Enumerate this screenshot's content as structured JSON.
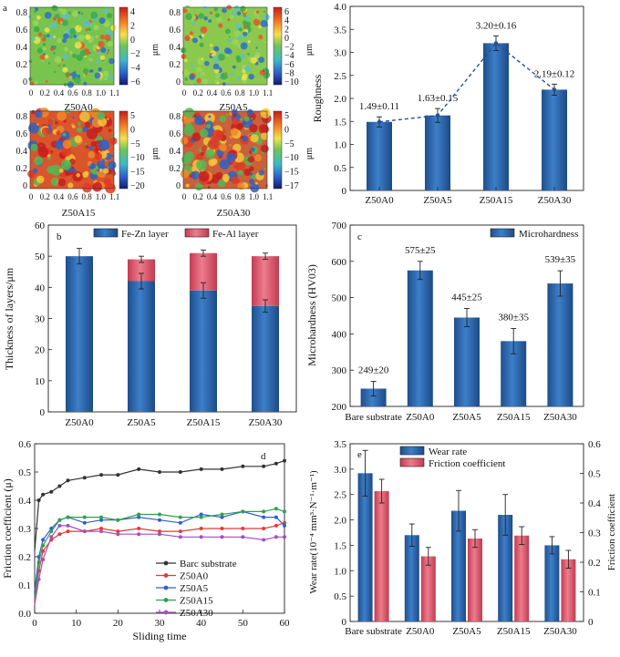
{
  "figure_label": "a",
  "chart_data": [
    {
      "type": "heatmap",
      "panel": "a",
      "tiles": [
        {
          "title": "Z50A0",
          "cbar_ticks": [
            "4",
            "2",
            "0",
            "−2",
            "−4",
            "−6"
          ],
          "cbar_unit": "μm"
        },
        {
          "title": "Z50A5",
          "cbar_ticks": [
            "6",
            "4",
            "2",
            "0",
            "−2",
            "−4",
            "−6",
            "−8",
            "−10"
          ],
          "cbar_unit": "μm"
        },
        {
          "title": "Z50A15",
          "cbar_ticks": [
            "5",
            "0",
            "−5",
            "−10",
            "−15",
            "−20"
          ],
          "cbar_unit": "μm"
        },
        {
          "title": "Z50A30",
          "cbar_ticks": [
            "5",
            "0",
            "−5",
            "−10",
            "−15",
            "−17"
          ],
          "cbar_unit": "μm"
        }
      ],
      "x_ticks": [
        "0",
        "0.2",
        "0.4",
        "0.6",
        "0.8",
        "1.0",
        "1.1"
      ],
      "y_ticks": [
        "0.8",
        "0.6",
        "0.4",
        "0.2",
        "0"
      ]
    },
    {
      "type": "bar",
      "panel": "roughness",
      "categories": [
        "Z50A0",
        "Z50A5",
        "Z50A15",
        "Z50A30"
      ],
      "values": [
        1.49,
        1.63,
        3.2,
        2.19
      ],
      "errors": [
        0.11,
        0.15,
        0.16,
        0.12
      ],
      "labels": [
        "1.49±0.11",
        "1.63±0.15",
        "3.20±0.16",
        "2.19±0.12"
      ],
      "ylabel": "Roughness",
      "ylim": [
        0,
        4.0
      ],
      "yticks": [
        "0",
        "0.5",
        "1.0",
        "1.5",
        "2.0",
        "2.5",
        "3.0",
        "3.5",
        "4.0"
      ],
      "trend_line": true
    },
    {
      "type": "bar",
      "panel": "b",
      "stacked": true,
      "categories": [
        "Z50A0",
        "Z50A5",
        "Z50A15",
        "Z50A30"
      ],
      "series": [
        {
          "name": "Fe-Zn layer",
          "values": [
            50,
            42,
            39,
            34
          ],
          "errors": [
            2.5,
            2.5,
            2.5,
            2
          ]
        },
        {
          "name": "Fe-Al layer",
          "values": [
            0,
            7,
            12,
            16
          ],
          "errors": [
            0,
            1,
            1,
            1
          ]
        }
      ],
      "ylabel": "Thickness of layers/μm",
      "ylim": [
        0,
        60
      ],
      "yticks": [
        "0",
        "10",
        "20",
        "30",
        "40",
        "50",
        "60"
      ],
      "legend": "top"
    },
    {
      "type": "bar",
      "panel": "c",
      "categories": [
        "Bare substrate",
        "Z50A0",
        "Z50A5",
        "Z50A15",
        "Z50A30"
      ],
      "values": [
        249,
        575,
        445,
        380,
        539
      ],
      "errors": [
        20,
        25,
        25,
        35,
        35
      ],
      "labels": [
        "249±20",
        "575±25",
        "445±25",
        "380±35",
        "539±35"
      ],
      "ylabel": "Microhardness (HV03)",
      "ylim": [
        200,
        700
      ],
      "yticks": [
        "200",
        "300",
        "400",
        "500",
        "600",
        "700"
      ],
      "legend_entry": "Microhardness"
    },
    {
      "type": "line",
      "panel": "d",
      "xlabel": "Sliding time",
      "ylabel": "Friction coefficient (μ)",
      "xlim": [
        0,
        60
      ],
      "ylim": [
        0,
        0.6
      ],
      "xticks": [
        "0",
        "10",
        "20",
        "30",
        "40",
        "50",
        "60"
      ],
      "yticks": [
        "0.0",
        "0.1",
        "0.2",
        "0.3",
        "0.4",
        "0.5",
        "0.6"
      ],
      "series": [
        {
          "name": "Barc substrate",
          "color": "#333333",
          "x": [
            0,
            1,
            2,
            4,
            6,
            8,
            12,
            16,
            20,
            25,
            30,
            35,
            40,
            45,
            50,
            55,
            58,
            60
          ],
          "y": [
            0.22,
            0.4,
            0.42,
            0.43,
            0.45,
            0.47,
            0.48,
            0.49,
            0.49,
            0.51,
            0.5,
            0.5,
            0.51,
            0.51,
            0.52,
            0.52,
            0.53,
            0.54
          ]
        },
        {
          "name": "Z50A0",
          "color": "#e23a3a",
          "x": [
            0,
            1,
            2,
            4,
            6,
            8,
            12,
            16,
            20,
            25,
            30,
            35,
            40,
            45,
            50,
            55,
            58,
            60
          ],
          "y": [
            0.04,
            0.15,
            0.22,
            0.26,
            0.28,
            0.29,
            0.29,
            0.3,
            0.29,
            0.3,
            0.29,
            0.29,
            0.3,
            0.3,
            0.3,
            0.3,
            0.31,
            0.32
          ]
        },
        {
          "name": "Z50A5",
          "color": "#2f5fd0",
          "x": [
            0,
            1,
            2,
            4,
            6,
            8,
            12,
            16,
            20,
            25,
            30,
            35,
            40,
            45,
            50,
            55,
            58,
            60
          ],
          "y": [
            0.08,
            0.2,
            0.26,
            0.3,
            0.33,
            0.34,
            0.32,
            0.33,
            0.33,
            0.34,
            0.33,
            0.32,
            0.35,
            0.34,
            0.36,
            0.34,
            0.34,
            0.31
          ]
        },
        {
          "name": "Z50A15",
          "color": "#2fa050",
          "x": [
            0,
            1,
            2,
            4,
            6,
            8,
            12,
            16,
            20,
            25,
            30,
            35,
            40,
            45,
            50,
            55,
            58,
            60
          ],
          "y": [
            0.05,
            0.18,
            0.24,
            0.29,
            0.33,
            0.34,
            0.34,
            0.34,
            0.33,
            0.35,
            0.35,
            0.34,
            0.34,
            0.35,
            0.36,
            0.36,
            0.37,
            0.36
          ]
        },
        {
          "name": "Z50A30",
          "color": "#a54fc0",
          "x": [
            0,
            1,
            2,
            4,
            6,
            8,
            12,
            16,
            20,
            25,
            30,
            35,
            40,
            45,
            50,
            55,
            58,
            60
          ],
          "y": [
            0.03,
            0.12,
            0.19,
            0.27,
            0.31,
            0.31,
            0.29,
            0.29,
            0.28,
            0.28,
            0.28,
            0.27,
            0.27,
            0.27,
            0.27,
            0.26,
            0.27,
            0.27
          ]
        }
      ],
      "legend": "bottom-center"
    },
    {
      "type": "bar",
      "panel": "e",
      "categories": [
        "Bare substrate",
        "Z50A0",
        "Z50A5",
        "Z50A15",
        "Z50A30"
      ],
      "series": [
        {
          "name": "Wear rate",
          "axis": "left",
          "values": [
            2.92,
            1.7,
            2.18,
            2.1,
            1.5
          ],
          "errors": [
            0.45,
            0.22,
            0.4,
            0.4,
            0.17
          ]
        },
        {
          "name": "Friction coefficient",
          "axis": "right",
          "values": [
            0.44,
            0.22,
            0.28,
            0.29,
            0.21
          ],
          "errors": [
            0.04,
            0.03,
            0.03,
            0.03,
            0.03
          ]
        }
      ],
      "ylabel": "Wear rate(10⁻⁴ mm³·N⁻¹·m⁻¹)",
      "ylim": [
        0,
        3.5
      ],
      "yticks": [
        "0",
        "0.5",
        "1.0",
        "1.5",
        "2.0",
        "2.5",
        "3.0",
        "3.5"
      ],
      "y2label": "Friction coefficient",
      "y2lim": [
        0,
        0.6
      ],
      "y2ticks": [
        "0",
        "0.1",
        "0.2",
        "0.3",
        "0.4",
        "0.5",
        "0.6"
      ],
      "legend": "top"
    }
  ]
}
